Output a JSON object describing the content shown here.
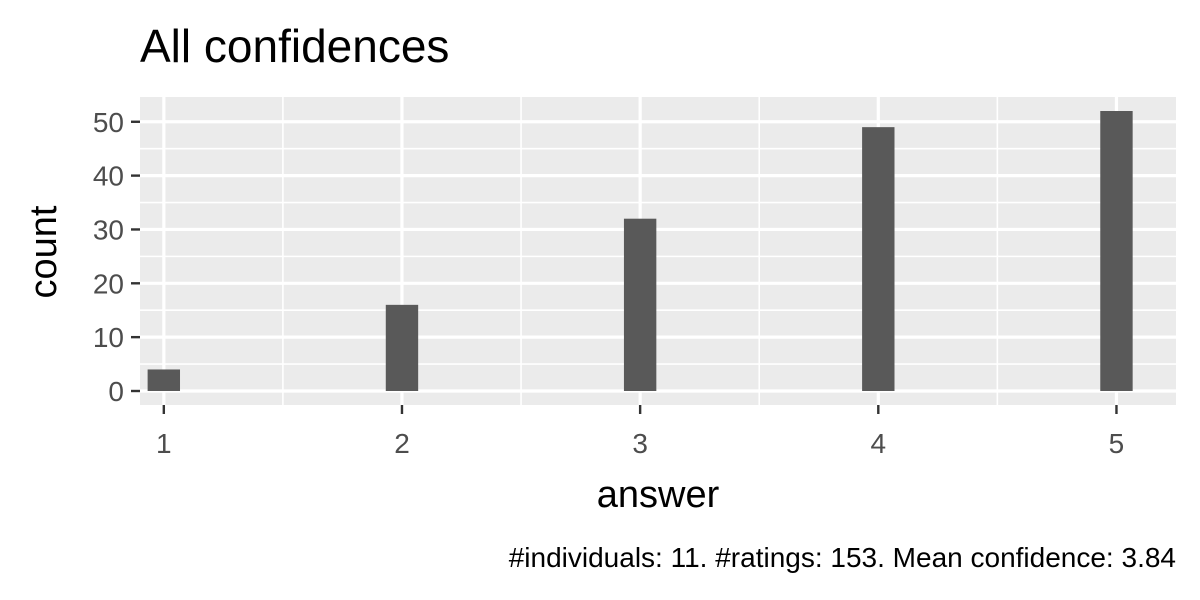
{
  "chart_data": {
    "type": "bar",
    "title": "All confidences",
    "xlabel": "answer",
    "ylabel": "count",
    "caption": "#individuals: 11. #ratings: 153. Mean confidence: 3.84",
    "categories": [
      "1",
      "2",
      "3",
      "4",
      "5"
    ],
    "x": [
      1,
      2,
      3,
      4,
      5
    ],
    "values": [
      4,
      16,
      32,
      49,
      52
    ],
    "xlim": [
      0.9,
      5.25
    ],
    "ylim": [
      -2.6,
      54.6
    ],
    "yticks": [
      0,
      10,
      20,
      30,
      40,
      50
    ],
    "ytick_labels": [
      "0",
      "10",
      "20",
      "30",
      "40",
      "50"
    ],
    "xtick_labels": [
      "1",
      "2",
      "3",
      "4",
      "5"
    ],
    "x_minor_gridlines": [
      1.5,
      2.5,
      3.5,
      4.5
    ],
    "y_minor_gridlines": [
      5,
      15,
      25,
      35,
      45
    ],
    "grid": true,
    "legend": "none"
  },
  "colors": {
    "panel_background": "#ebebeb",
    "gridline": "#ffffff",
    "bar_fill": "#595959",
    "tick_text": "#4d4d4d",
    "tick_mark": "#333333",
    "text": "#000000"
  }
}
